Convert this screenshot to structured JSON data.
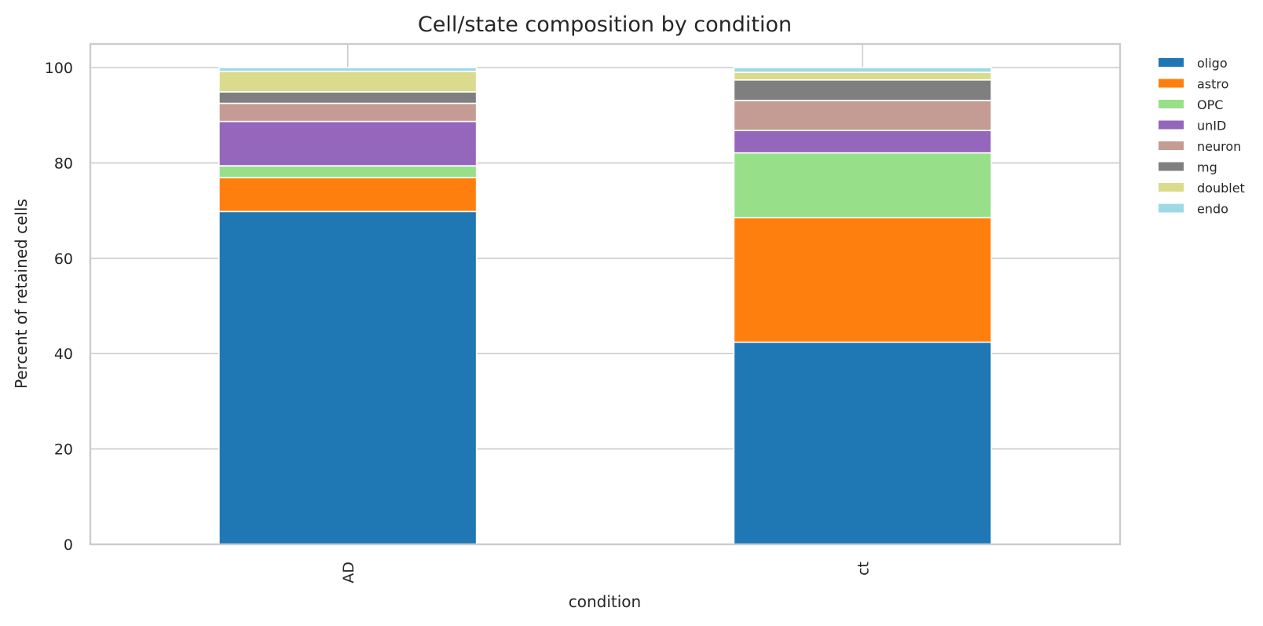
{
  "chart_data": {
    "type": "bar",
    "stacked": true,
    "title": "Cell/state composition by condition",
    "xlabel": "condition",
    "ylabel": "Percent of retained cells",
    "categories": [
      "AD",
      "ct"
    ],
    "ylim": [
      0,
      100
    ],
    "yticks": [
      0,
      20,
      40,
      60,
      80,
      100
    ],
    "grid": true,
    "legend_position": "outside-top-right",
    "series": [
      {
        "name": "oligo",
        "color": "#1f77b4",
        "values": [
          69.8,
          42.4
        ]
      },
      {
        "name": "astro",
        "color": "#ff7f0e",
        "values": [
          7.1,
          26.1
        ]
      },
      {
        "name": "OPC",
        "color": "#98df8a",
        "values": [
          2.5,
          13.6
        ]
      },
      {
        "name": "unID",
        "color": "#9467bd",
        "values": [
          9.3,
          4.7
        ]
      },
      {
        "name": "neuron",
        "color": "#c49c94",
        "values": [
          3.8,
          6.3
        ]
      },
      {
        "name": "mg",
        "color": "#7f7f7f",
        "values": [
          2.4,
          4.3
        ]
      },
      {
        "name": "doublet",
        "color": "#dbdb8d",
        "values": [
          4.3,
          1.6
        ]
      },
      {
        "name": "endo",
        "color": "#9edae5",
        "values": [
          0.8,
          1.0
        ]
      }
    ]
  }
}
